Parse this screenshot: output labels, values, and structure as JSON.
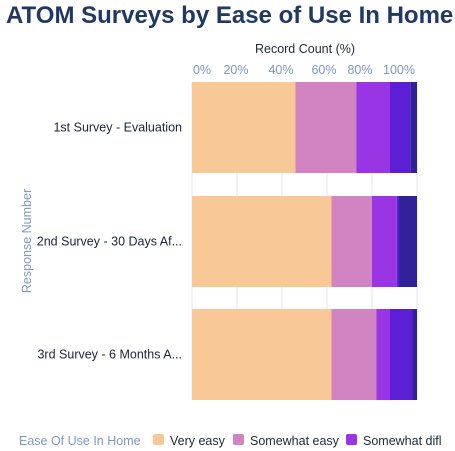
{
  "chart_data": {
    "type": "bar",
    "orientation": "horizontal",
    "stacked": true,
    "title": "ATOM Surveys by Ease of Use In Home",
    "xlabel": "Record Count (%)",
    "ylabel": "Response Number",
    "xlim": [
      0,
      100
    ],
    "x_ticks": [
      "0%",
      "20%",
      "40%",
      "60%",
      "80%",
      "100%"
    ],
    "grid": true,
    "categories": [
      "1st Survey - Evaluation",
      "2nd Survey - 30 Days Af...",
      "3rd Survey - 6 Months A..."
    ],
    "series": [
      {
        "name": "Very easy",
        "color": "#f9c897",
        "values": [
          46,
          62,
          62
        ]
      },
      {
        "name": "Somewhat easy",
        "color": "#d184c1",
        "values": [
          27,
          18,
          20
        ]
      },
      {
        "name": "Somewhat difl",
        "color": "#9935e4",
        "values": [
          15,
          11,
          6
        ]
      },
      {
        "color": "#5c1fd6",
        "values": [
          9,
          1,
          10
        ]
      },
      {
        "color": "#31229a",
        "values": [
          3,
          8,
          2
        ]
      }
    ],
    "legend": {
      "title": "Ease Of Use In Home",
      "position": "bottom"
    }
  }
}
